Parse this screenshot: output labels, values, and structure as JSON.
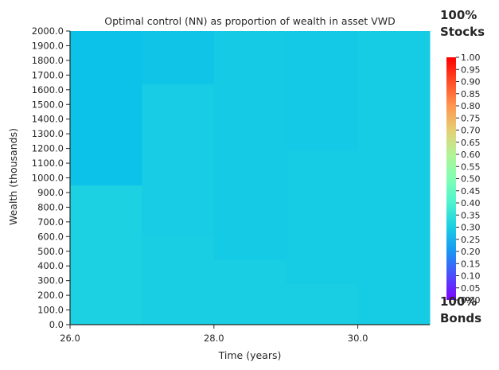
{
  "chart_data": {
    "type": "heatmap",
    "title": "Optimal control (NN) as proportion of wealth in asset VWD",
    "xlabel": "Time (years)",
    "ylabel": "Wealth (thousands)",
    "x_ticks": [
      "26.0",
      "28.0",
      "30.0"
    ],
    "y_ticks": [
      "0.0",
      "100.0",
      "200.0",
      "300.0",
      "400.0",
      "500.0",
      "600.0",
      "700.0",
      "800.0",
      "900.0",
      "1000.0",
      "1100.0",
      "1200.0",
      "1300.0",
      "1400.0",
      "1500.0",
      "1600.0",
      "1700.0",
      "1800.0",
      "1900.0",
      "2000.0"
    ],
    "xlim": [
      26,
      31
    ],
    "ylim": [
      0,
      2000
    ],
    "colorbar": {
      "min": 0,
      "max": 1,
      "ticks": [
        "0.00",
        "0.05",
        "0.10",
        "0.15",
        "0.20",
        "0.25",
        "0.30",
        "0.35",
        "0.40",
        "0.45",
        "0.50",
        "0.55",
        "0.60",
        "0.65",
        "0.70",
        "0.75",
        "0.80",
        "0.85",
        "0.90",
        "0.95",
        "1.00"
      ],
      "colormap": "rainbow"
    },
    "cells": [
      {
        "t0": 26,
        "t1": 27,
        "w0": 0,
        "w1": 950,
        "value": 0.305
      },
      {
        "t0": 26,
        "t1": 27,
        "w0": 950,
        "w1": 2000,
        "value": 0.275
      },
      {
        "t0": 27,
        "t1": 28,
        "w0": 0,
        "w1": 610,
        "value": 0.3
      },
      {
        "t0": 27,
        "t1": 28,
        "w0": 610,
        "w1": 1640,
        "value": 0.295
      },
      {
        "t0": 27,
        "t1": 28,
        "w0": 1640,
        "w1": 2000,
        "value": 0.28
      },
      {
        "t0": 28,
        "t1": 29,
        "w0": 0,
        "w1": 440,
        "value": 0.3
      },
      {
        "t0": 28,
        "t1": 29,
        "w0": 440,
        "w1": 2000,
        "value": 0.292
      },
      {
        "t0": 29,
        "t1": 30,
        "w0": 0,
        "w1": 280,
        "value": 0.3
      },
      {
        "t0": 29,
        "t1": 30,
        "w0": 280,
        "w1": 1190,
        "value": 0.293
      },
      {
        "t0": 29,
        "t1": 30,
        "w0": 1190,
        "w1": 2000,
        "value": 0.29
      },
      {
        "t0": 30,
        "t1": 31,
        "w0": 0,
        "w1": 2000,
        "value": 0.293
      }
    ]
  },
  "annotations": {
    "top_note_line1": "100%",
    "top_note_line2": "Stocks",
    "bottom_note_line1": "100%",
    "bottom_note_line2": "Bonds"
  }
}
